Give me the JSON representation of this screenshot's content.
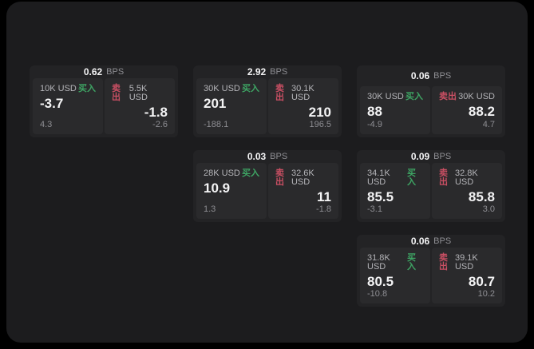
{
  "colors": {
    "page_bg": "#000000",
    "panel_bg": "#1c1c1e",
    "card_bg": "#232325",
    "tile_bg": "#2a2a2c",
    "buy_green": "#3ea564",
    "sell_red": "#c94f63",
    "text_primary": "#f4f4f5",
    "text_secondary": "#b4b4b8",
    "text_muted": "#8e8e93"
  },
  "labels": {
    "bps": "BPS",
    "buy": "买入",
    "sell": "卖出"
  },
  "cards": [
    {
      "row": 1,
      "col": 1,
      "spread": "0.62",
      "buy": {
        "size": "10K USD",
        "price": "-3.7",
        "delta": "4.3"
      },
      "sell": {
        "size": "5.5K USD",
        "price": "-1.8",
        "delta": "-2.6"
      }
    },
    {
      "row": 1,
      "col": 2,
      "spread": "2.92",
      "buy": {
        "size": "30K USD",
        "price": "201",
        "delta": "-188.1"
      },
      "sell": {
        "size": "30.1K USD",
        "price": "210",
        "delta": "196.5"
      }
    },
    {
      "row": 1,
      "col": 3,
      "spread": "0.06",
      "buy": {
        "size": "30K USD",
        "price": "88",
        "delta": "-4.9"
      },
      "sell": {
        "size": "30K USD",
        "price": "88.2",
        "delta": "4.7"
      }
    },
    {
      "row": 2,
      "col": 2,
      "spread": "0.03",
      "buy": {
        "size": "28K USD",
        "price": "10.9",
        "delta": "1.3"
      },
      "sell": {
        "size": "32.6K USD",
        "price": "11",
        "delta": "-1.8"
      }
    },
    {
      "row": 2,
      "col": 3,
      "spread": "0.09",
      "buy": {
        "size": "34.1K USD",
        "price": "85.5",
        "delta": "-3.1"
      },
      "sell": {
        "size": "32.8K USD",
        "price": "85.8",
        "delta": "3.0"
      }
    },
    {
      "row": 3,
      "col": 3,
      "spread": "0.06",
      "buy": {
        "size": "31.8K USD",
        "price": "80.5",
        "delta": "-10.8"
      },
      "sell": {
        "size": "39.1K USD",
        "price": "80.7",
        "delta": "10.2"
      }
    }
  ]
}
